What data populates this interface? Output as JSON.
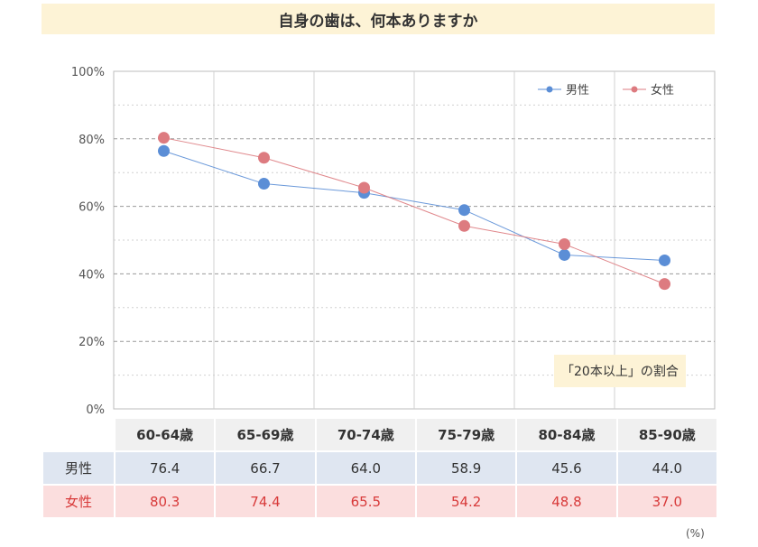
{
  "title": "自身の歯は、何本ありますか",
  "note": "「20本以上」の割合",
  "unit_label": "(%)",
  "colors": {
    "male": "#5b8ed6",
    "female": "#dd7b80",
    "title_bg": "#fdf3d6"
  },
  "chart_data": {
    "type": "line",
    "title": "自身の歯は、何本ありますか",
    "categories": [
      "60-64歳",
      "65-69歳",
      "70-74歳",
      "75-79歳",
      "80-84歳",
      "85-90歳"
    ],
    "series": [
      {
        "name": "男性",
        "values": [
          76.4,
          66.7,
          64.0,
          58.9,
          45.6,
          44.0
        ]
      },
      {
        "name": "女性",
        "values": [
          80.3,
          74.4,
          65.5,
          54.2,
          48.8,
          37.0
        ]
      }
    ],
    "ylim": [
      0,
      100
    ],
    "yticks": [
      "0%",
      "20%",
      "40%",
      "60%",
      "80%",
      "100%"
    ],
    "legend_position": "top-right",
    "grid": true
  },
  "table": {
    "headers": [
      "60-64歳",
      "65-69歳",
      "70-74歳",
      "75-79歳",
      "80-84歳",
      "85-90歳"
    ],
    "rows": [
      {
        "label": "男性",
        "values": [
          "76.4",
          "66.7",
          "64.0",
          "58.9",
          "45.6",
          "44.0"
        ]
      },
      {
        "label": "女性",
        "values": [
          "80.3",
          "74.4",
          "65.5",
          "54.2",
          "48.8",
          "37.0"
        ]
      }
    ]
  }
}
